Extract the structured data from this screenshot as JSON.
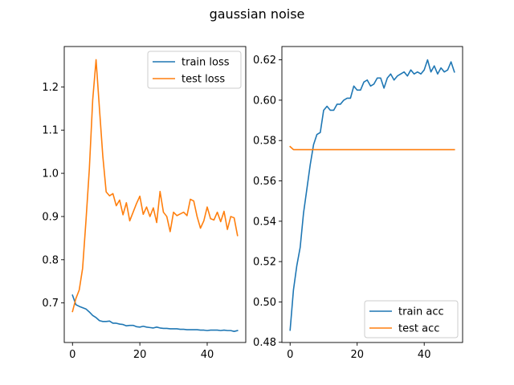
{
  "figure": {
    "title": "gaussian noise"
  },
  "colors": {
    "series_blue": "#1f77b4",
    "series_orange": "#ff7f0e"
  },
  "chart_data": [
    {
      "type": "line",
      "title": "",
      "xlabel": "",
      "ylabel": "",
      "xlim": [
        -2.45,
        51.45
      ],
      "ylim": [
        0.6084,
        1.2935
      ],
      "xticks": [
        0,
        20,
        40
      ],
      "xtick_labels": [
        "0",
        "20",
        "40"
      ],
      "yticks": [
        0.7,
        0.8,
        0.9,
        1.0,
        1.1,
        1.2
      ],
      "ytick_labels": [
        "0.7",
        "0.8",
        "0.9",
        "1.0",
        "1.1",
        "1.2"
      ],
      "grid": false,
      "legend_position": "top-right",
      "x": [
        0,
        1,
        2,
        3,
        4,
        5,
        6,
        7,
        8,
        9,
        10,
        11,
        12,
        13,
        14,
        15,
        16,
        17,
        18,
        19,
        20,
        21,
        22,
        23,
        24,
        25,
        26,
        27,
        28,
        29,
        30,
        31,
        32,
        33,
        34,
        35,
        36,
        37,
        38,
        39,
        40,
        41,
        42,
        43,
        44,
        45,
        46,
        47,
        48,
        49
      ],
      "series": [
        {
          "name": "train loss",
          "color": "#1f77b4",
          "values": [
            0.718,
            0.696,
            0.692,
            0.689,
            0.686,
            0.679,
            0.671,
            0.666,
            0.659,
            0.657,
            0.657,
            0.658,
            0.653,
            0.653,
            0.651,
            0.65,
            0.647,
            0.648,
            0.648,
            0.645,
            0.644,
            0.646,
            0.644,
            0.643,
            0.642,
            0.644,
            0.642,
            0.641,
            0.641,
            0.64,
            0.64,
            0.64,
            0.639,
            0.639,
            0.638,
            0.638,
            0.638,
            0.638,
            0.637,
            0.637,
            0.636,
            0.637,
            0.637,
            0.637,
            0.636,
            0.637,
            0.636,
            0.636,
            0.634,
            0.636
          ]
        },
        {
          "name": "test loss",
          "color": "#ff7f0e",
          "values": [
            0.68,
            0.71,
            0.73,
            0.78,
            0.89,
            1.01,
            1.17,
            1.263,
            1.15,
            1.04,
            0.957,
            0.948,
            0.953,
            0.925,
            0.938,
            0.904,
            0.932,
            0.89,
            0.91,
            0.93,
            0.947,
            0.905,
            0.922,
            0.9,
            0.92,
            0.886,
            0.958,
            0.91,
            0.9,
            0.865,
            0.91,
            0.902,
            0.906,
            0.91,
            0.902,
            0.94,
            0.936,
            0.9,
            0.873,
            0.89,
            0.922,
            0.895,
            0.892,
            0.91,
            0.888,
            0.912,
            0.87,
            0.9,
            0.897,
            0.856
          ]
        }
      ]
    },
    {
      "type": "line",
      "title": "",
      "xlabel": "",
      "ylabel": "",
      "xlim": [
        -2.45,
        51.45
      ],
      "ylim": [
        0.4799,
        0.6266
      ],
      "xticks": [
        0,
        20,
        40
      ],
      "xtick_labels": [
        "0",
        "20",
        "40"
      ],
      "yticks": [
        0.48,
        0.5,
        0.52,
        0.54,
        0.56,
        0.58,
        0.6,
        0.62
      ],
      "ytick_labels": [
        "0.48",
        "0.50",
        "0.52",
        "0.54",
        "0.56",
        "0.58",
        "0.60",
        "0.62"
      ],
      "grid": false,
      "legend_position": "bottom-right",
      "x": [
        0,
        1,
        2,
        3,
        4,
        5,
        6,
        7,
        8,
        9,
        10,
        11,
        12,
        13,
        14,
        15,
        16,
        17,
        18,
        19,
        20,
        21,
        22,
        23,
        24,
        25,
        26,
        27,
        28,
        29,
        30,
        31,
        32,
        33,
        34,
        35,
        36,
        37,
        38,
        39,
        40,
        41,
        42,
        43,
        44,
        45,
        46,
        47,
        48,
        49
      ],
      "series": [
        {
          "name": "train acc",
          "color": "#1f77b4",
          "values": [
            0.486,
            0.506,
            0.518,
            0.527,
            0.544,
            0.556,
            0.568,
            0.578,
            0.583,
            0.584,
            0.595,
            0.597,
            0.595,
            0.595,
            0.598,
            0.598,
            0.6,
            0.601,
            0.601,
            0.607,
            0.605,
            0.605,
            0.609,
            0.61,
            0.607,
            0.608,
            0.611,
            0.611,
            0.606,
            0.611,
            0.613,
            0.61,
            0.612,
            0.613,
            0.614,
            0.612,
            0.615,
            0.613,
            0.614,
            0.613,
            0.615,
            0.62,
            0.614,
            0.617,
            0.613,
            0.616,
            0.614,
            0.615,
            0.619,
            0.614
          ]
        },
        {
          "name": "test acc",
          "color": "#ff7f0e",
          "values": [
            0.577,
            0.5755,
            0.5755,
            0.5755,
            0.5755,
            0.5755,
            0.5755,
            0.5755,
            0.5755,
            0.5755,
            0.5755,
            0.5755,
            0.5755,
            0.5755,
            0.5755,
            0.5755,
            0.5755,
            0.5755,
            0.5755,
            0.5755,
            0.5755,
            0.5755,
            0.5755,
            0.5755,
            0.5755,
            0.5755,
            0.5755,
            0.5755,
            0.5755,
            0.5755,
            0.5755,
            0.5755,
            0.5755,
            0.5755,
            0.5755,
            0.5755,
            0.5755,
            0.5755,
            0.5755,
            0.5755,
            0.5755,
            0.5755,
            0.5755,
            0.5755,
            0.5755,
            0.5755,
            0.5755,
            0.5755,
            0.5755,
            0.5755
          ]
        }
      ]
    }
  ]
}
